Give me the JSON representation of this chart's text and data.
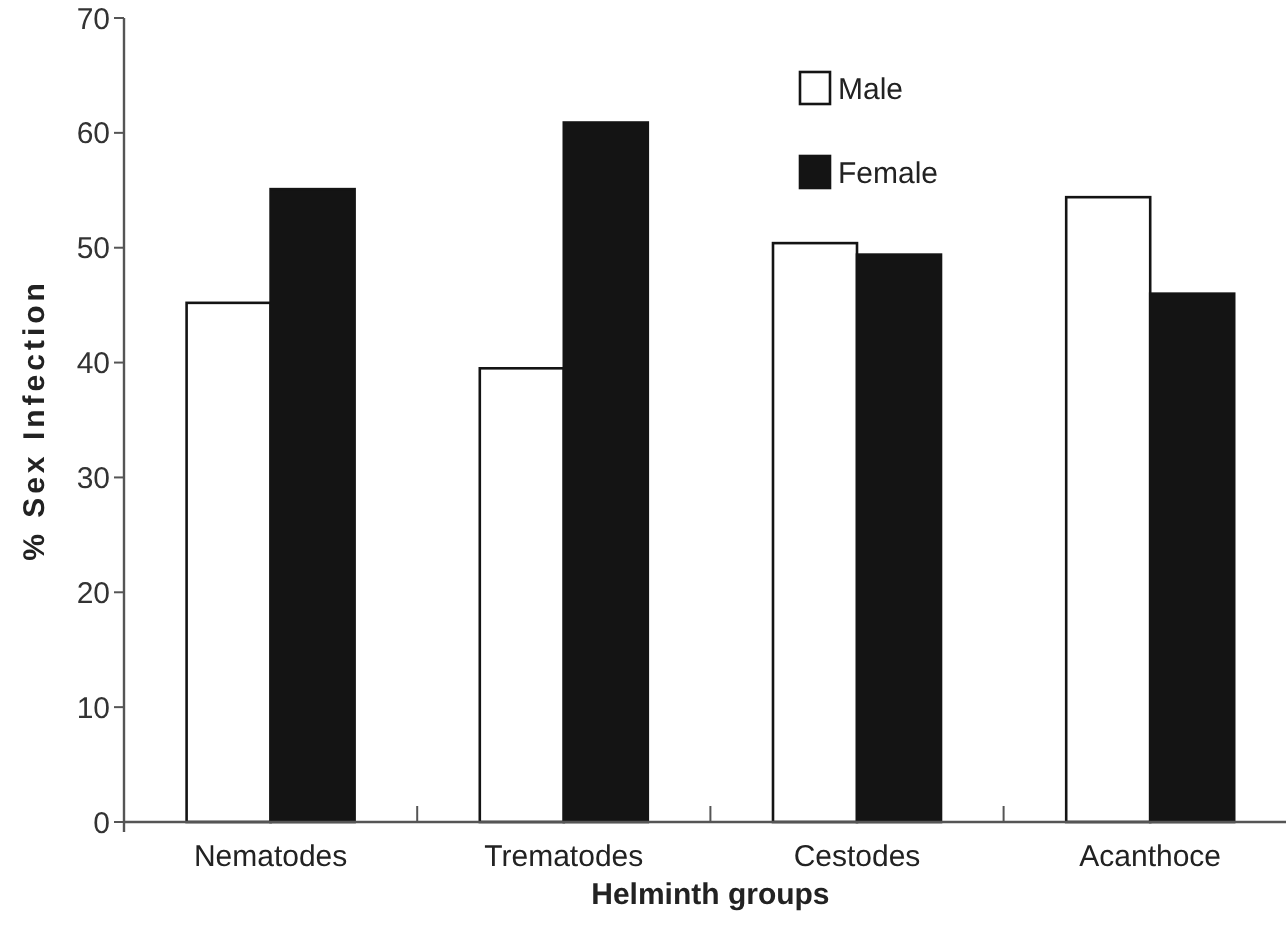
{
  "chart_data": {
    "type": "bar",
    "xlabel": "Helminth groups",
    "ylabel": "% Sex Infection",
    "categories": [
      "Nematodes",
      "Trematodes",
      "Cestodes",
      "Acanthoce"
    ],
    "series": [
      {
        "name": "Male",
        "color": "#ffffff",
        "values": [
          45.2,
          39.5,
          50.4,
          54.4
        ]
      },
      {
        "name": "Female",
        "color": "#141414",
        "values": [
          55.1,
          60.9,
          49.4,
          46.0
        ]
      }
    ],
    "ylim": [
      0,
      70
    ],
    "yticks": [
      0,
      10,
      20,
      30,
      40,
      50,
      60,
      70
    ],
    "grid": false,
    "legend": "top right"
  }
}
